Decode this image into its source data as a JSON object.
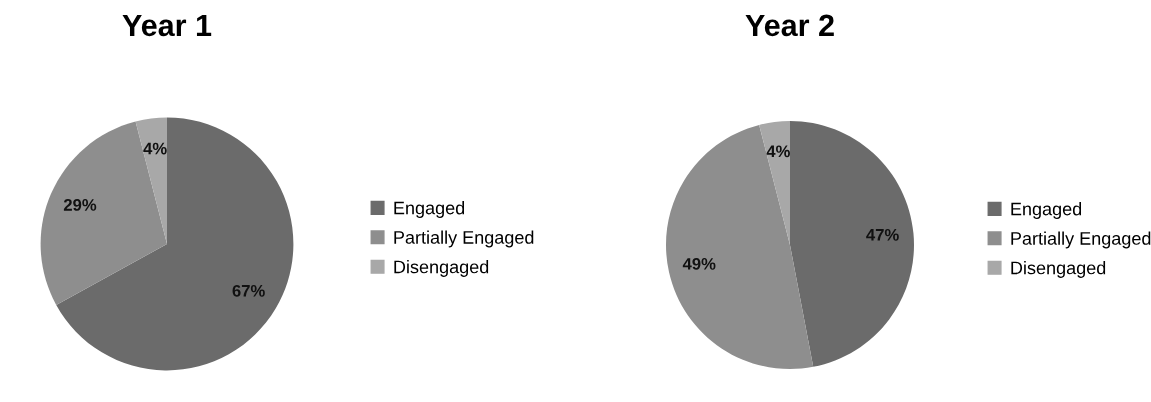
{
  "chart_data": [
    {
      "type": "pie",
      "title": "Year 1",
      "categories": [
        "Engaged",
        "Partially Engaged",
        "Disengaged"
      ],
      "values": [
        67,
        29,
        4
      ],
      "value_labels": [
        "67%",
        "29%",
        "4%"
      ],
      "colors": [
        "#6b6b6b",
        "#8e8e8e",
        "#a8a8a8"
      ],
      "legend": "right"
    },
    {
      "type": "pie",
      "title": "Year 2",
      "categories": [
        "Engaged",
        "Partially Engaged",
        "Disengaged"
      ],
      "values": [
        47,
        49,
        4
      ],
      "value_labels": [
        "47%",
        "49%",
        "4%"
      ],
      "colors": [
        "#6b6b6b",
        "#8e8e8e",
        "#a8a8a8"
      ],
      "legend": "right"
    }
  ]
}
